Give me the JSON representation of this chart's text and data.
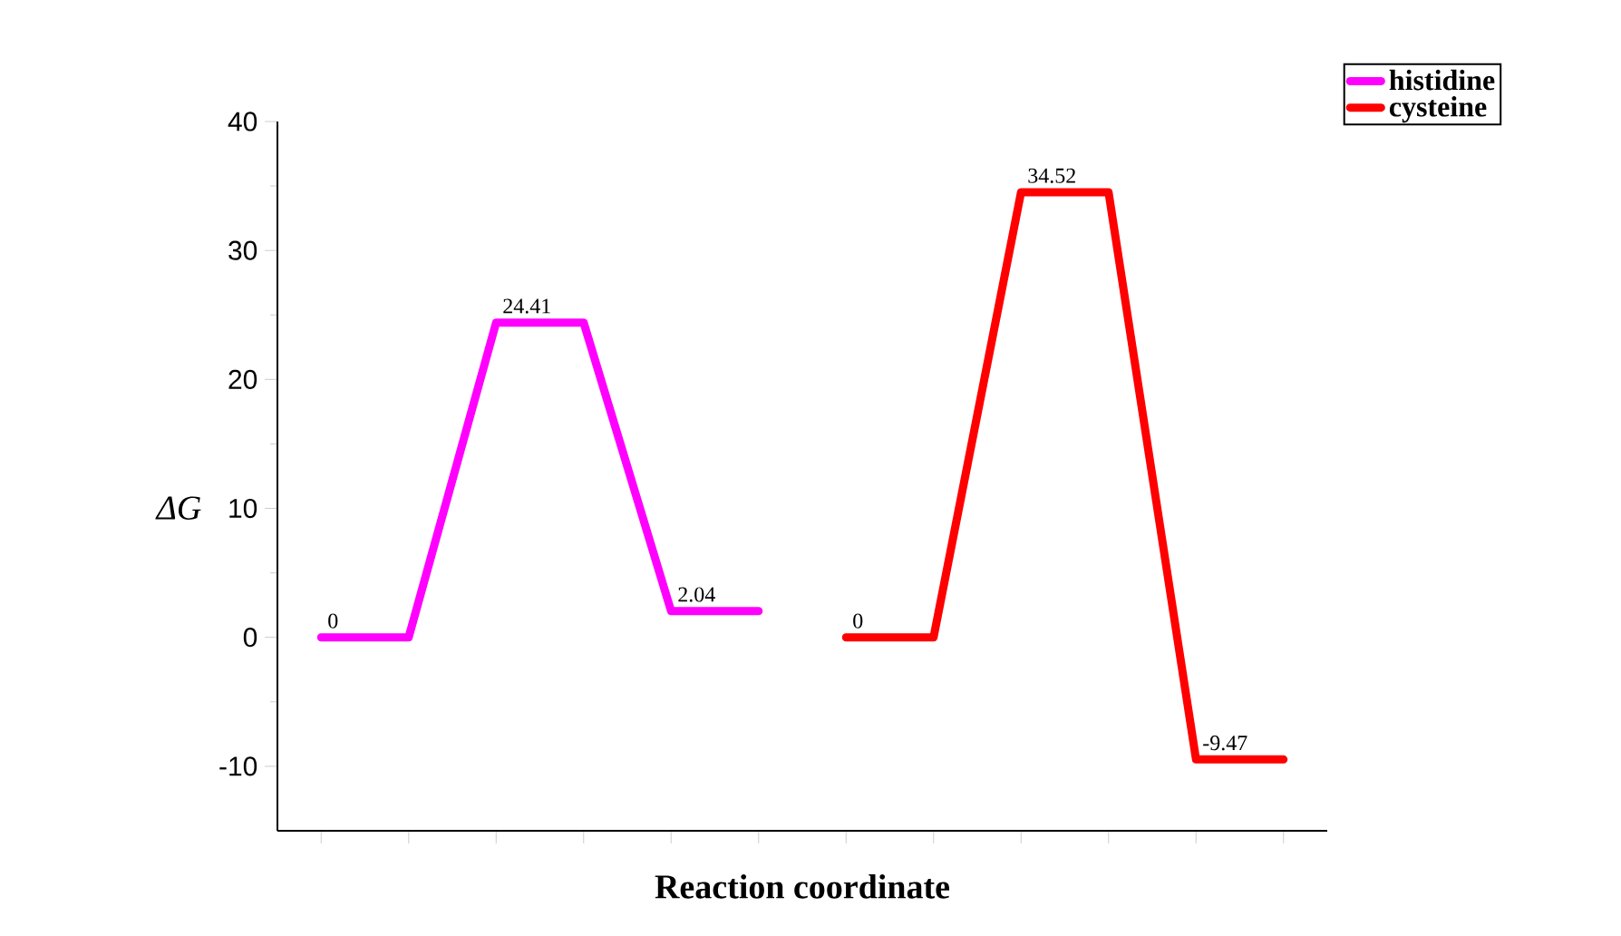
{
  "chart_data": {
    "type": "line",
    "xlabel": "Reaction coordinate",
    "ylabel": "ΔG",
    "categories": [
      null,
      null,
      null,
      null,
      null,
      null,
      null,
      null,
      null,
      null,
      null,
      null
    ],
    "ylim": [
      -15,
      40
    ],
    "yticks": [
      -10,
      0,
      10,
      20,
      30,
      40
    ],
    "legend": "top right",
    "grid": false,
    "series": [
      {
        "name": "histidine",
        "color": "#ff00ff",
        "values": [
          0,
          0,
          24.41,
          24.41,
          2.04,
          2.04,
          null,
          null,
          null,
          null,
          null,
          null
        ],
        "value_labels": [
          "0",
          null,
          "24.41",
          null,
          "2.04",
          null,
          null,
          null,
          null,
          null,
          null,
          null
        ]
      },
      {
        "name": "cysteine",
        "color": "#ff0000",
        "values": [
          null,
          null,
          null,
          null,
          null,
          null,
          0,
          0,
          34.52,
          34.52,
          -9.47,
          -9.47
        ],
        "value_labels": [
          null,
          null,
          null,
          null,
          null,
          null,
          "0",
          null,
          "34.52",
          null,
          "-9.47",
          null
        ]
      }
    ]
  }
}
